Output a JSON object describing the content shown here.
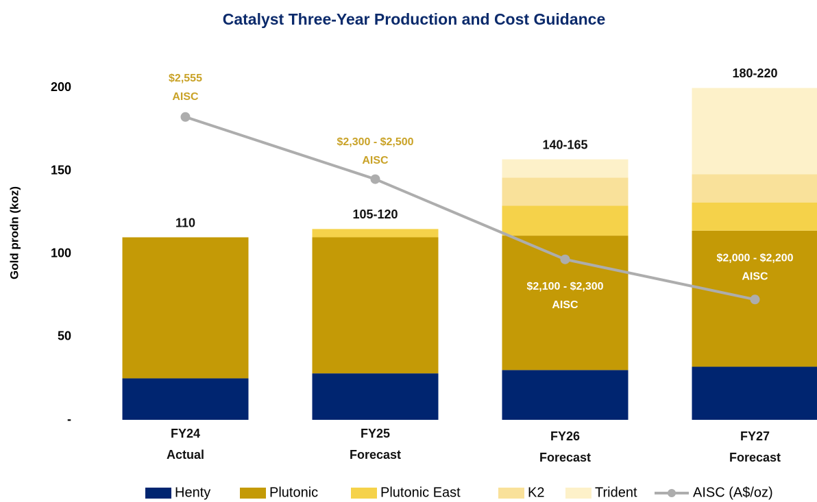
{
  "chart_data": {
    "type": "bar",
    "stacked": true,
    "title": "Catalyst Three-Year Production and Cost Guidance",
    "y_label": "Gold prodn (koz)",
    "categories": [
      [
        "FY24",
        "Actual"
      ],
      [
        "FY25",
        "Forecast"
      ],
      [
        "FY26",
        "Forecast"
      ],
      [
        "FY27",
        "Forecast"
      ]
    ],
    "total_labels": [
      "110",
      "105-120",
      "140-165",
      "180-220"
    ],
    "ylim": [
      0,
      220
    ],
    "yticks": [
      {
        "value": 0,
        "label": "-"
      },
      50,
      100,
      150,
      200
    ],
    "y2lim": [
      1800,
      2710
    ],
    "series": [
      {
        "name": "Henty",
        "color": "#002570",
        "values": [
          25,
          28,
          30,
          32
        ]
      },
      {
        "name": "Plutonic",
        "color": "#C49A06",
        "values": [
          85,
          82,
          81,
          82
        ]
      },
      {
        "name": "Plutonic East",
        "color": "#F5D24A",
        "values": [
          null,
          5,
          18,
          17
        ]
      },
      {
        "name": "K2",
        "color": "#F9E19A",
        "values": [
          null,
          null,
          17,
          17
        ]
      },
      {
        "name": "Trident",
        "color": "#FDF1C9",
        "values": [
          null,
          null,
          11,
          52
        ]
      },
      {
        "name": "AISC (A$/oz)",
        "type": "line",
        "axis": "y2",
        "color": "#ADADAD",
        "values": [
          2555,
          2400,
          2200,
          2100
        ],
        "value_labels": [
          [
            "$2,555",
            "AISC"
          ],
          [
            "$2,300 - $2,500",
            "AISC"
          ],
          [
            "$2,100 - $2,300",
            "AISC"
          ],
          [
            "$2,000 - $2,200",
            "AISC"
          ]
        ],
        "value_label_colors": [
          "#C9A227",
          "#C9A227",
          "#FFFFFF",
          "#FFFFFF"
        ]
      }
    ]
  }
}
